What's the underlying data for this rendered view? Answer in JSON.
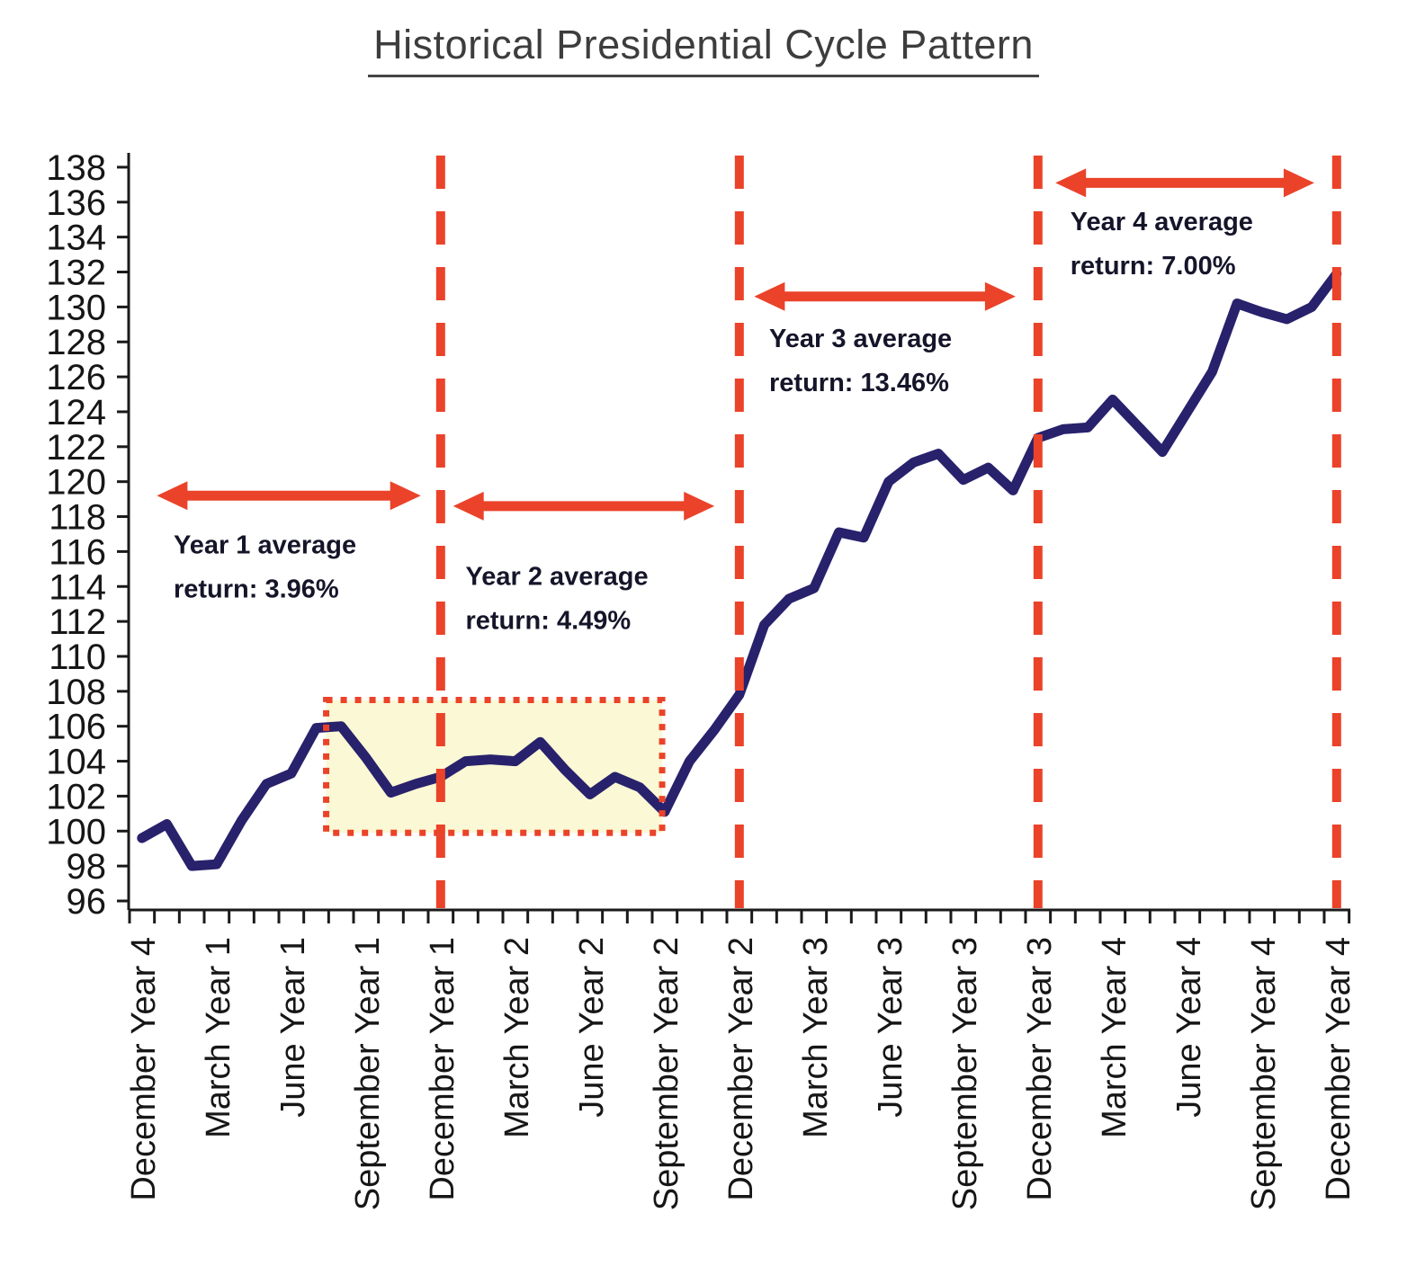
{
  "title": "Historical Presidential Cycle Pattern",
  "colors": {
    "line": "#28216b",
    "accent_red": "#ea432a",
    "highlight_fill": "#faf8d5",
    "axis": "#1a1a1a",
    "tick_label": "#161616",
    "annotation_text": "#15152a",
    "title_color": "#3d3d3d"
  },
  "chart_data": {
    "type": "line",
    "title": "Historical Presidential Cycle Pattern",
    "x_unit": "month of presidential cycle (monthly points)",
    "n_points": 49,
    "x_label_every_n_points": 3,
    "x_tick_labels": [
      "December Year 4",
      "March Year 1",
      "June Year 1",
      "September Year 1",
      "December Year 1",
      "March Year 2",
      "June Year 2",
      "September Year 2",
      "December Year 2",
      "March Year 3",
      "June Year 3",
      "September Year 3",
      "December Year 3",
      "March Year 4",
      "June Year 4",
      "September Year 4",
      "December Year 4"
    ],
    "values": [
      99.6,
      100.4,
      98.0,
      98.1,
      100.6,
      102.7,
      103.3,
      105.9,
      106.0,
      104.2,
      102.2,
      102.7,
      103.1,
      104.0,
      104.1,
      104.0,
      105.1,
      103.5,
      102.1,
      103.1,
      102.5,
      101.1,
      104.0,
      105.8,
      107.8,
      111.8,
      113.3,
      113.9,
      117.1,
      116.8,
      120.0,
      121.1,
      121.6,
      120.1,
      120.8,
      119.5,
      122.5,
      123.0,
      123.1,
      124.7,
      123.2,
      121.7,
      124.0,
      126.3,
      130.2,
      129.7,
      129.3,
      130.0,
      131.9
    ],
    "ylim": [
      96,
      138
    ],
    "y_tick_step": 2,
    "grid": false,
    "legend": "none",
    "dashed_vlines_at_months": [
      12,
      24,
      36,
      48
    ],
    "highlight_box": {
      "from_month": 7.4,
      "to_month": 20.9,
      "from_value": 99.9,
      "to_value": 107.5
    },
    "annotations": [
      {
        "id": "year-1",
        "line1": "Year 1 average",
        "line2": "return: 3.96%",
        "arrow": {
          "from_month": 0.6,
          "to_month": 11.2,
          "value": 119.2
        },
        "label_at": {
          "month": 1.27,
          "value": 115.9
        }
      },
      {
        "id": "year-2",
        "line1": "Year 2 average",
        "line2": "return: 4.49%",
        "arrow": {
          "from_month": 12.5,
          "to_month": 23.0,
          "value": 118.6
        },
        "label_at": {
          "month": 13.0,
          "value": 114.1
        }
      },
      {
        "id": "year-3",
        "line1": "Year 3 average",
        "line2": "return: 13.46%",
        "arrow": {
          "from_month": 24.6,
          "to_month": 35.1,
          "value": 130.6
        },
        "label_at": {
          "month": 25.2,
          "value": 127.7
        }
      },
      {
        "id": "year-4",
        "line1": "Year 4 average",
        "line2": "return: 7.00%",
        "arrow": {
          "from_month": 36.7,
          "to_month": 47.1,
          "value": 137.1
        },
        "label_at": {
          "month": 37.3,
          "value": 134.4
        }
      }
    ]
  }
}
